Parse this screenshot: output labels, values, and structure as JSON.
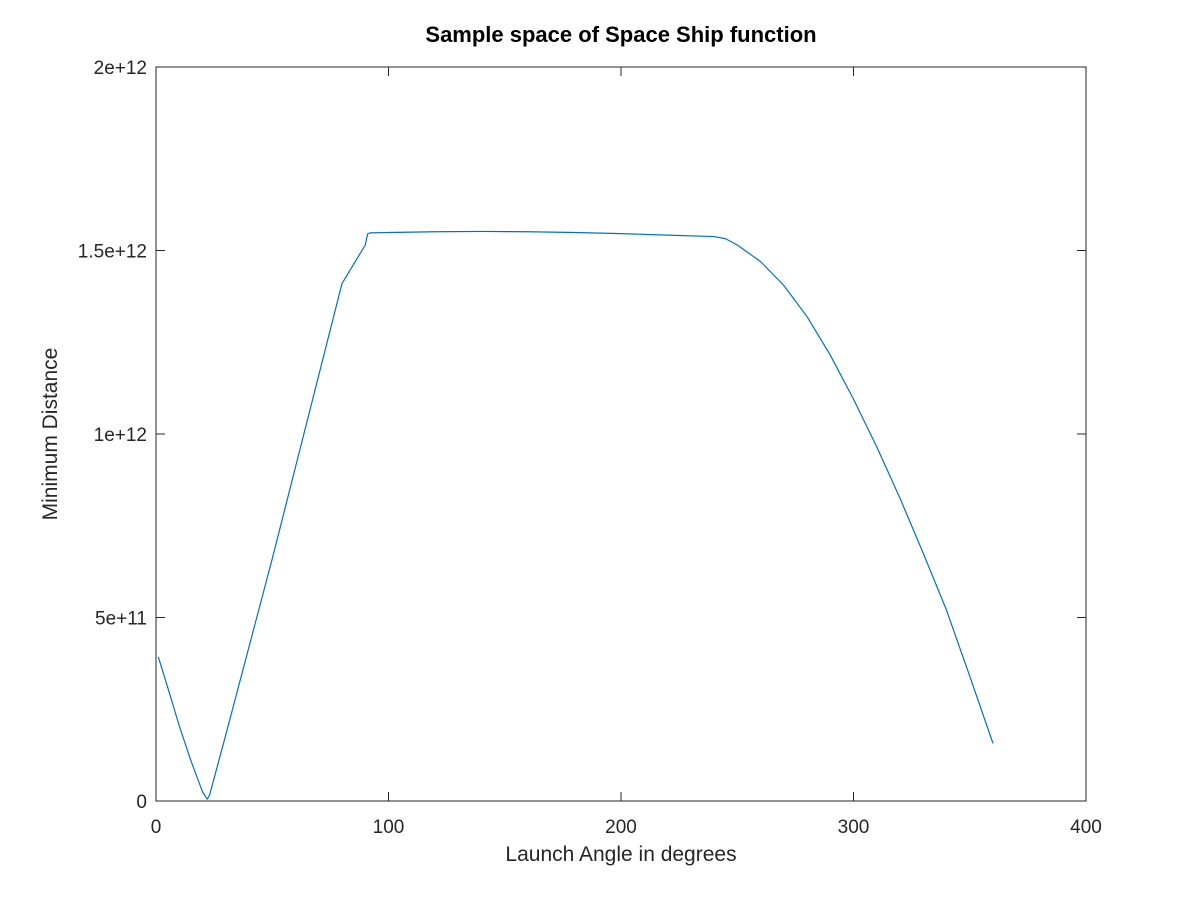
{
  "chart_data": {
    "type": "line",
    "title": "Sample space of Space Ship function",
    "xlabel": "Launch Angle in degrees",
    "ylabel": "Minimum Distance",
    "xlim": [
      0,
      400
    ],
    "ylim": [
      0,
      2000000000000
    ],
    "xticks": [
      0,
      100,
      200,
      300,
      400
    ],
    "xtick_labels": [
      "0",
      "100",
      "200",
      "300",
      "400"
    ],
    "yticks": [
      0,
      500000000000,
      1000000000000,
      1500000000000,
      2000000000000
    ],
    "ytick_labels": [
      "0",
      "5e+11",
      "1e+12",
      "1.5e+12",
      "2e+12"
    ],
    "grid": false,
    "legend": "none",
    "series": [
      {
        "color": "#0072bd",
        "x": [
          1,
          5,
          10,
          15,
          20,
          22,
          23,
          30,
          40,
          50,
          60,
          70,
          80,
          90,
          91,
          92,
          100,
          120,
          140,
          160,
          180,
          200,
          220,
          240,
          245,
          250,
          260,
          270,
          280,
          290,
          300,
          310,
          320,
          330,
          340,
          350,
          360
        ],
        "y": [
          393000000000,
          310000000000,
          205000000000,
          110000000000,
          25000000000,
          5000000000,
          15000000000,
          180000000000,
          420000000000,
          660000000000,
          910000000000,
          1160000000000,
          1410000000000,
          1515000000000,
          1545000000000,
          1548000000000,
          1549000000000,
          1551000000000,
          1552000000000,
          1551000000000,
          1549000000000,
          1546000000000,
          1542000000000,
          1538000000000,
          1532000000000,
          1515000000000,
          1470000000000,
          1405000000000,
          1320000000000,
          1215000000000,
          1095000000000,
          965000000000,
          825000000000,
          675000000000,
          520000000000,
          340000000000,
          157000000000
        ]
      }
    ]
  }
}
